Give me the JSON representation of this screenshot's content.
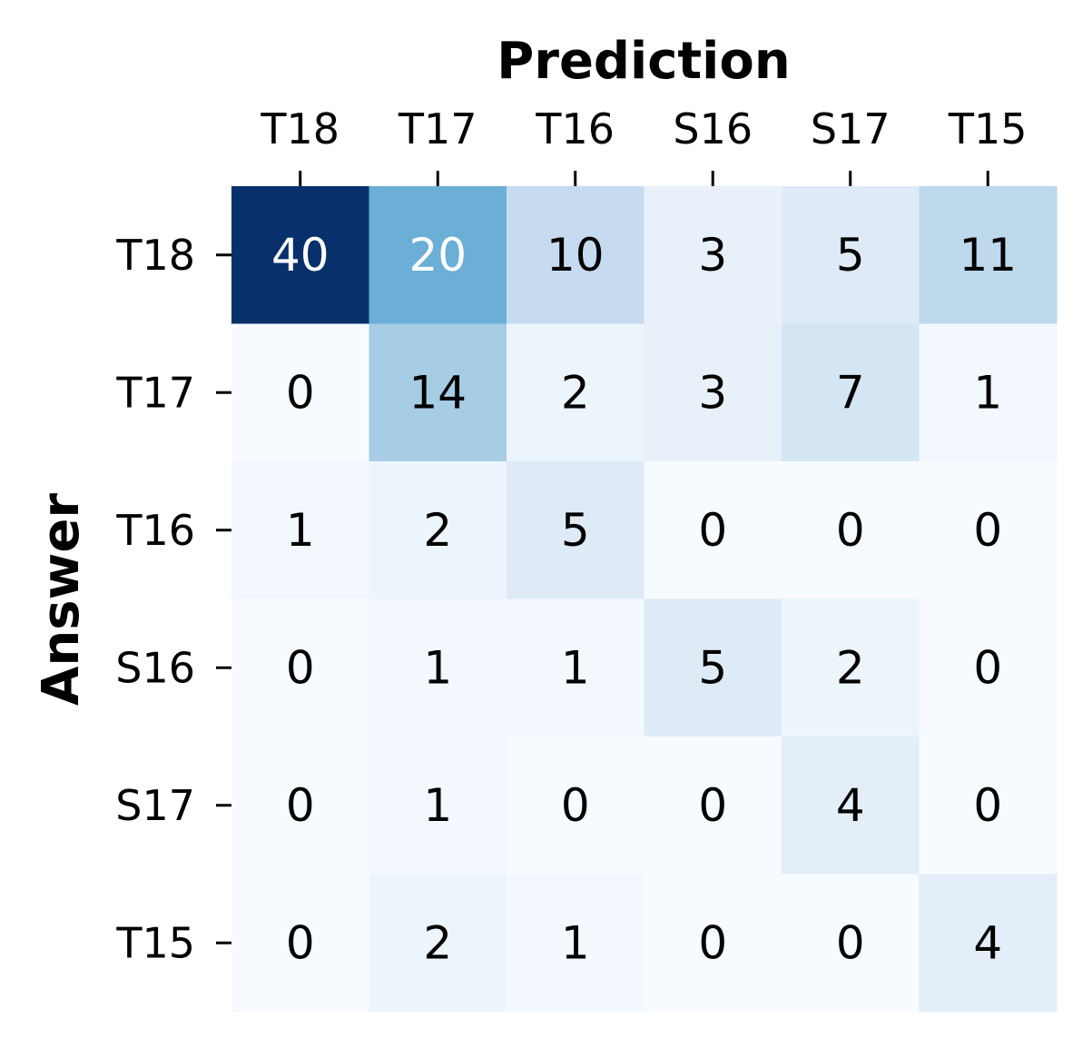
{
  "chart_data": {
    "type": "heatmap",
    "xlabel": "Prediction",
    "ylabel": "Answer",
    "x_categories": [
      "T18",
      "T17",
      "T16",
      "S16",
      "S17",
      "T15"
    ],
    "y_categories": [
      "T18",
      "T17",
      "T16",
      "S16",
      "S17",
      "T15"
    ],
    "values": [
      [
        40,
        20,
        10,
        3,
        5,
        11
      ],
      [
        0,
        14,
        2,
        3,
        7,
        1
      ],
      [
        1,
        2,
        5,
        0,
        0,
        0
      ],
      [
        0,
        1,
        1,
        5,
        2,
        0
      ],
      [
        0,
        1,
        0,
        0,
        4,
        0
      ],
      [
        0,
        2,
        1,
        0,
        0,
        4
      ]
    ],
    "colormap": "Blues",
    "color_range": [
      0,
      40
    ],
    "colorbar": false,
    "annotated": true,
    "x_axis_position": "top"
  }
}
